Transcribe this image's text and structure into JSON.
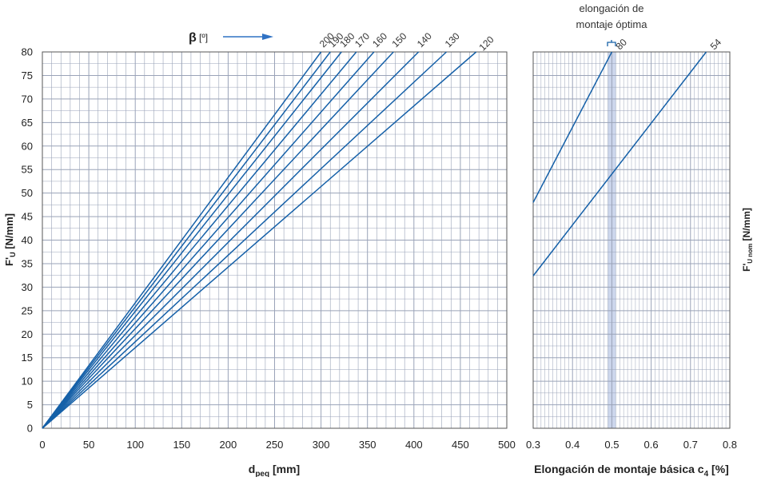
{
  "chart_data": [
    {
      "type": "line",
      "xlabel": "d",
      "xlabel_sub": "peq",
      "xlabel_unit": " [mm]",
      "ylabel": "F'",
      "ylabel_sub": "U",
      "ylabel_unit": " [N/mm]",
      "xlim": [
        0,
        500
      ],
      "ylim": [
        0,
        80
      ],
      "x_ticks": [
        0,
        50,
        100,
        150,
        200,
        250,
        300,
        350,
        400,
        450,
        500
      ],
      "y_ticks": [
        0,
        5,
        10,
        15,
        20,
        25,
        30,
        35,
        40,
        45,
        50,
        55,
        60,
        65,
        70,
        75,
        80
      ],
      "grid": true,
      "legend_title": "β",
      "legend_unit": "[º]",
      "series": [
        {
          "name": "200",
          "x": [
            0,
            300
          ],
          "y": [
            0,
            80
          ]
        },
        {
          "name": "190",
          "x": [
            0,
            310
          ],
          "y": [
            0,
            80
          ]
        },
        {
          "name": "180",
          "x": [
            0,
            322
          ],
          "y": [
            0,
            80
          ]
        },
        {
          "name": "170",
          "x": [
            0,
            338
          ],
          "y": [
            0,
            80
          ]
        },
        {
          "name": "160",
          "x": [
            0,
            357
          ],
          "y": [
            0,
            80
          ]
        },
        {
          "name": "150",
          "x": [
            0,
            378
          ],
          "y": [
            0,
            80
          ]
        },
        {
          "name": "140",
          "x": [
            0,
            405
          ],
          "y": [
            0,
            80
          ]
        },
        {
          "name": "130",
          "x": [
            0,
            435
          ],
          "y": [
            0,
            80
          ]
        },
        {
          "name": "120",
          "x": [
            0,
            467
          ],
          "y": [
            0,
            80
          ]
        }
      ]
    },
    {
      "type": "line",
      "xlabel": "Elongación de montaje básica c",
      "xlabel_sub": "4",
      "xlabel_unit": " [%]",
      "ylabel": "F'",
      "ylabel_sub": "U nom",
      "ylabel_unit": " [N/mm]",
      "xlim": [
        0.3,
        0.8
      ],
      "ylim": [
        0,
        80
      ],
      "x_ticks": [
        "0.3",
        "0.4",
        "0.5",
        "0.6",
        "0.7",
        "0.8"
      ],
      "grid": true,
      "series": [
        {
          "name": "80",
          "x": [
            0.3,
            0.5
          ],
          "y": [
            48,
            80
          ]
        },
        {
          "name": "54",
          "x": [
            0.3,
            0.74
          ],
          "y": [
            32.4,
            80
          ]
        }
      ],
      "optimum": {
        "label_line1": "elongación de",
        "label_line2": "montaje óptima",
        "x": [
          0.49,
          0.51
        ]
      }
    }
  ],
  "colors": {
    "line": "#1560a8",
    "grid": "#9aa3b8",
    "band": "#c7d2ea",
    "arrow": "#2f72c4"
  }
}
